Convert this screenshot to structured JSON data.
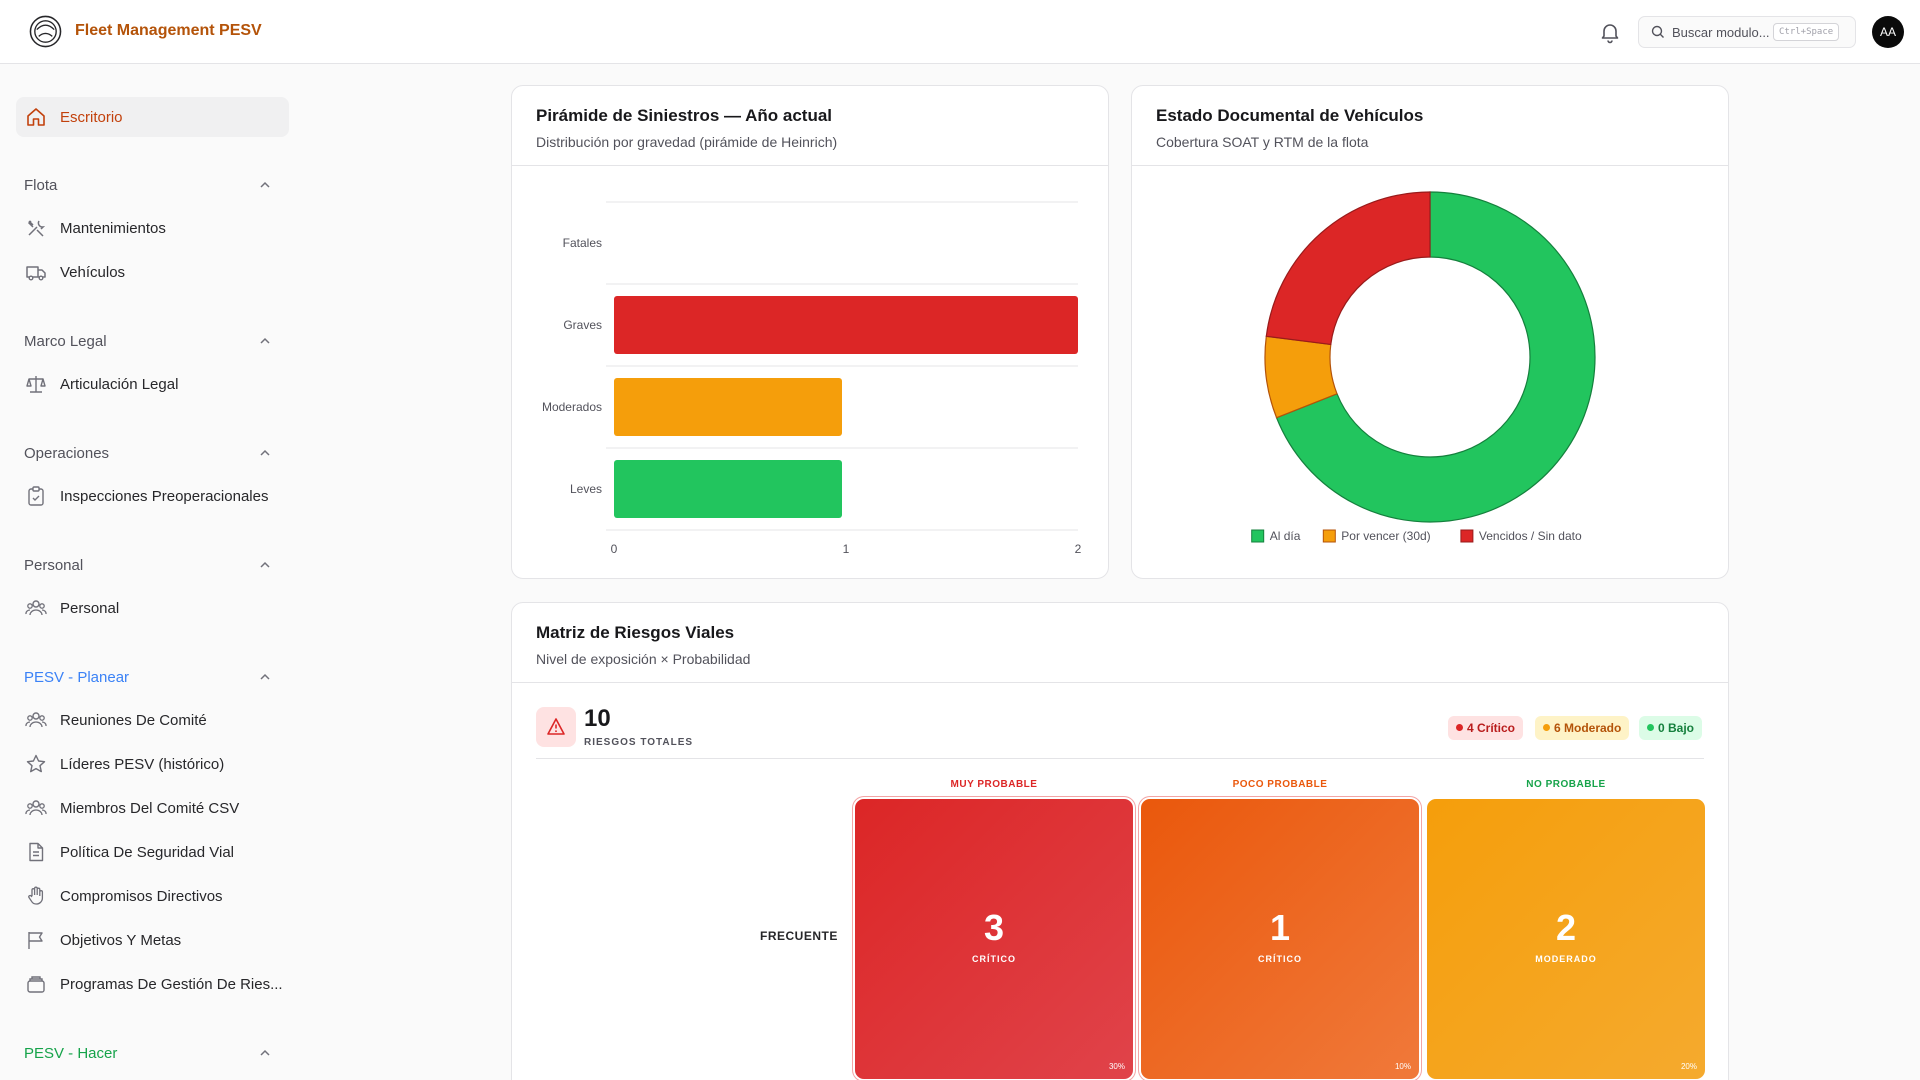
{
  "header": {
    "app_title": "Fleet Management PESV",
    "search_placeholder": "Buscar modulo...",
    "search_shortcut": "Ctrl+Space",
    "avatar_initials": "AA"
  },
  "sidebar": {
    "active_item": "Escritorio",
    "sections": [
      {
        "title": "Flota",
        "items": [
          "Mantenimientos",
          "Vehículos"
        ]
      },
      {
        "title": "Marco Legal",
        "items": [
          "Articulación Legal"
        ]
      },
      {
        "title": "Operaciones",
        "items": [
          "Inspecciones Preoperacionales"
        ]
      },
      {
        "title": "Personal",
        "items": [
          "Personal"
        ]
      },
      {
        "title": "PESV - Planear",
        "items": [
          "Reuniones De Comité",
          "Líderes PESV (histórico)",
          "Miembros Del Comité CSV",
          "Política De Seguridad Vial",
          "Compromisos Directivos",
          "Objetivos Y Metas",
          "Programas De Gestión De Ries..."
        ]
      },
      {
        "title": "PESV - Hacer",
        "items": []
      }
    ]
  },
  "colors": {
    "brand": "#b45309",
    "critical": "#dc2626",
    "moderate": "#f59e0b",
    "low": "#22c55e",
    "poco_probable": "#ea580c"
  },
  "pyramid_card": {
    "title": "Pirámide de Siniestros — Año actual",
    "subtitle": "Distribución por gravedad (pirámide de Heinrich)"
  },
  "documents_card": {
    "title": "Estado Documental de Vehículos",
    "subtitle": "Cobertura SOAT y RTM de la flota"
  },
  "risk_card": {
    "title": "Matriz de Riesgos Viales",
    "subtitle": "Nivel de exposición × Probabilidad",
    "total": "10",
    "total_label": "RIESGOS TOTALES",
    "pills": {
      "critical": "4 Crítico",
      "moderate": "6 Moderado",
      "low": "0 Bajo"
    },
    "columns": [
      "MUY PROBABLE",
      "POCO PROBABLE",
      "NO PROBABLE"
    ],
    "row_label": "FRECUENTE",
    "cells": [
      {
        "count": "3",
        "level": "CRÍTICO",
        "pct": "30%"
      },
      {
        "count": "1",
        "level": "CRÍTICO",
        "pct": "10%"
      },
      {
        "count": "2",
        "level": "MODERADO",
        "pct": "20%"
      }
    ]
  },
  "chart_data": [
    {
      "type": "bar",
      "orientation": "horizontal",
      "categories": [
        "Fatales",
        "Graves",
        "Moderados",
        "Leves"
      ],
      "values": [
        0,
        2,
        1,
        1
      ],
      "colors": [
        "#dc2626",
        "#dc2626",
        "#f59e0b",
        "#22c55e"
      ],
      "xlim": [
        0,
        2
      ],
      "xticks": [
        "0",
        "1",
        "2"
      ],
      "grid": true
    },
    {
      "type": "pie",
      "variant": "donut",
      "labels": [
        "Al día",
        "Por vencer (30d)",
        "Vencidos / Sin dato"
      ],
      "values": [
        69,
        8,
        23
      ],
      "colors": [
        "#22c55e",
        "#f59e0b",
        "#dc2626"
      ],
      "legend": "bottom"
    }
  ]
}
